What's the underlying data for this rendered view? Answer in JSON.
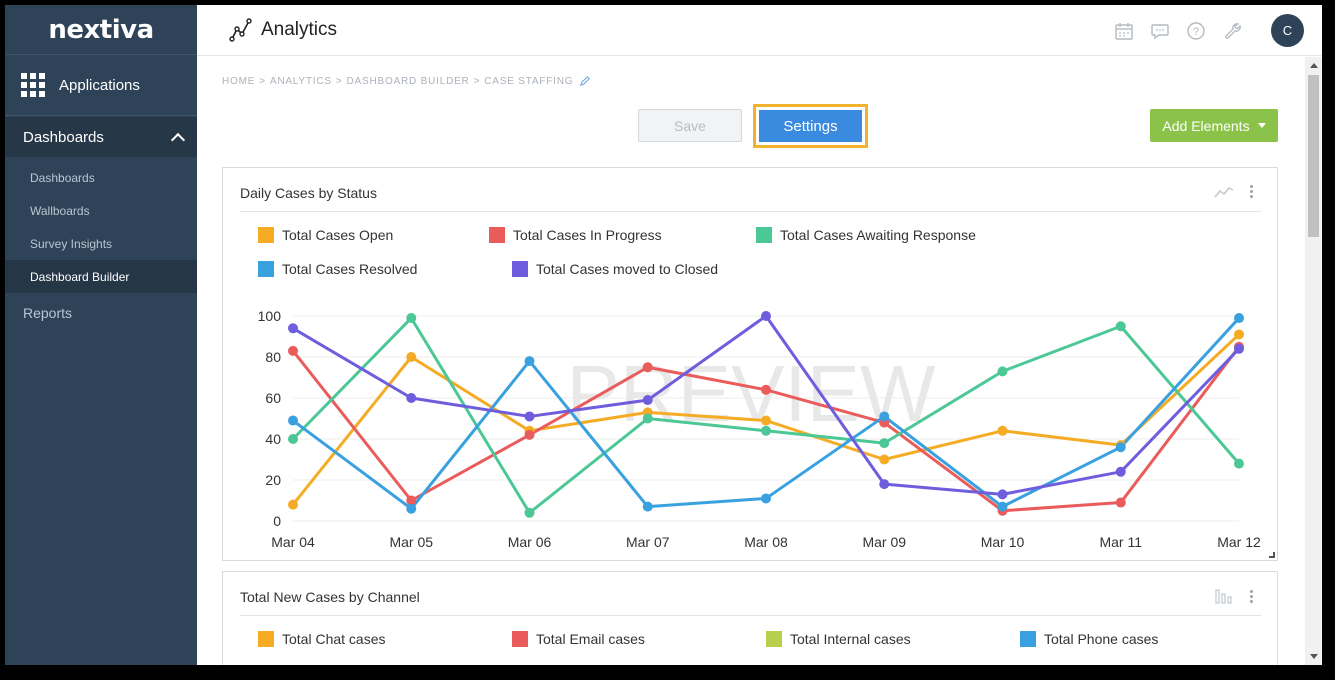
{
  "sidebar": {
    "logo": "nextiva",
    "applications_label": "Applications",
    "dashboards_label": "Dashboards",
    "items": [
      "Dashboards",
      "Wallboards",
      "Survey Insights",
      "Dashboard Builder"
    ],
    "active_item": "Dashboard Builder",
    "reports_label": "Reports"
  },
  "topbar": {
    "title": "Analytics",
    "icons": [
      "calendar-icon",
      "chat-icon",
      "help-icon",
      "wrench-icon"
    ],
    "avatar_initial": "C"
  },
  "breadcrumb": [
    "HOME",
    "ANALYTICS",
    "DASHBOARD BUILDER",
    "CASE STAFFING"
  ],
  "toolbar": {
    "save_label": "Save",
    "settings_label": "Settings",
    "add_elements_label": "Add Elements"
  },
  "card1": {
    "title": "Daily Cases by Status",
    "watermark": "PREVIEW",
    "legend": [
      "Total Cases Open",
      "Total Cases In Progress",
      "Total Cases Awaiting Response",
      "Total Cases Resolved",
      "Total Cases moved to Closed"
    ]
  },
  "card2": {
    "title": "Total New Cases by Channel",
    "legend": [
      "Total Chat cases",
      "Total Email cases",
      "Total Internal cases",
      "Total Phone cases"
    ],
    "legend_colors": [
      "#f5ac24",
      "#ea5b5b",
      "#b7cf4c",
      "#3aa1e0"
    ]
  },
  "colors": {
    "sidebar_bg": "#2f4358",
    "accent_blue": "#3a8be0",
    "add_green": "#8bc34a",
    "highlight": "#f1b32b"
  },
  "chart_data": {
    "type": "line",
    "title": "Daily Cases by Status",
    "categories": [
      "Mar 04",
      "Mar 05",
      "Mar 06",
      "Mar 07",
      "Mar 08",
      "Mar 09",
      "Mar 10",
      "Mar 11",
      "Mar 12"
    ],
    "yticks": [
      0,
      20,
      40,
      60,
      80,
      100
    ],
    "ylim": [
      0,
      100
    ],
    "grid": true,
    "legend_position": "top",
    "series": [
      {
        "name": "Total Cases Open",
        "color": "#f5ac24",
        "values": [
          8,
          80,
          44,
          53,
          49,
          30,
          44,
          37,
          91
        ]
      },
      {
        "name": "Total Cases In Progress",
        "color": "#ea5b5b",
        "values": [
          83,
          10,
          42,
          75,
          64,
          48,
          5,
          9,
          85
        ]
      },
      {
        "name": "Total Cases Awaiting Response",
        "color": "#4cc796",
        "values": [
          40,
          99,
          4,
          50,
          44,
          38,
          73,
          95,
          28
        ]
      },
      {
        "name": "Total Cases Resolved",
        "color": "#3aa1e0",
        "values": [
          49,
          6,
          78,
          7,
          11,
          51,
          7,
          36,
          99
        ]
      },
      {
        "name": "Total Cases moved to Closed",
        "color": "#6e5ddc",
        "values": [
          94,
          60,
          51,
          59,
          100,
          18,
          13,
          24,
          84
        ]
      }
    ]
  }
}
